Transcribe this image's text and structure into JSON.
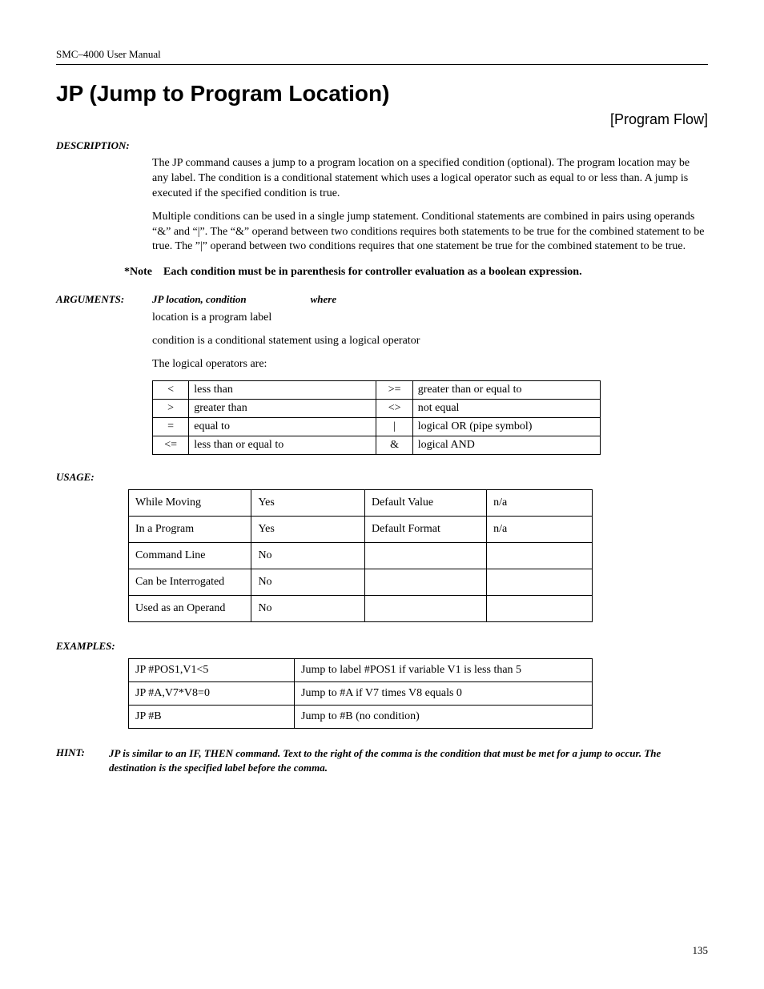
{
  "header": "SMC–4000 User Manual",
  "title": "JP (Jump to Program Location)",
  "category": "[Program Flow]",
  "labels": {
    "description": "DESCRIPTION:",
    "note": "*Note",
    "arguments": "ARGUMENTS:",
    "usage": "USAGE:",
    "examples": "EXAMPLES:",
    "hint": "HINT:"
  },
  "description": {
    "p1": "The JP command causes a jump to a program location on a specified condition (optional).  The program location may be any label.  The condition is a conditional statement which uses a logical operator such as equal to or less than.  A jump is executed if the specified condition is true.",
    "p2": "Multiple conditions can be used in a single jump statement. Conditional statements are combined in pairs using operands “&” and “|”. The “&” operand between two conditions requires both statements to be true for the combined statement to be true. The ”|” operand between two conditions requires that one statement be true for the combined statement to be true."
  },
  "note_text": "Each condition must be in parenthesis for controller evaluation as a boolean expression.",
  "arguments": {
    "syntax": "JP location, condition",
    "where": "where",
    "l1": "location is a program label",
    "l2": "condition is a conditional statement using a logical operator",
    "l3": "The logical operators are:"
  },
  "operators": [
    {
      "s1": "<",
      "d1": "less than",
      "s2": ">=",
      "d2": "greater than or equal to"
    },
    {
      "s1": ">",
      "d1": "greater than",
      "s2": "<>",
      "d2": "not equal"
    },
    {
      "s1": "=",
      "d1": "equal to",
      "s2": "|",
      "d2": "logical OR (pipe symbol)"
    },
    {
      "s1": "<=",
      "d1": "less than or equal to",
      "s2": "&",
      "d2": "logical AND"
    }
  ],
  "usage": [
    {
      "c1": "While Moving",
      "c2": "Yes",
      "c3": "Default Value",
      "c4": "n/a"
    },
    {
      "c1": "In a Program",
      "c2": "Yes",
      "c3": "Default Format",
      "c4": "n/a"
    },
    {
      "c1": "Command Line",
      "c2": "No",
      "c3": "",
      "c4": ""
    },
    {
      "c1": "Can be Interrogated",
      "c2": "No",
      "c3": "",
      "c4": ""
    },
    {
      "c1": "Used as an Operand",
      "c2": "No",
      "c3": "",
      "c4": ""
    }
  ],
  "examples": [
    {
      "cmd": "JP #POS1,V1<5",
      "desc": "Jump to label #POS1 if variable V1 is less than 5"
    },
    {
      "cmd": "JP #A,V7*V8=0",
      "desc": "Jump to #A if V7 times V8 equals 0"
    },
    {
      "cmd": "JP #B",
      "desc": "Jump to #B (no condition)"
    }
  ],
  "hint_text": "JP is similar to an IF, THEN command. Text to the right of the comma is the condition that must be met for a jump to occur. The destination is the specified label before the comma.",
  "page_number": "135"
}
